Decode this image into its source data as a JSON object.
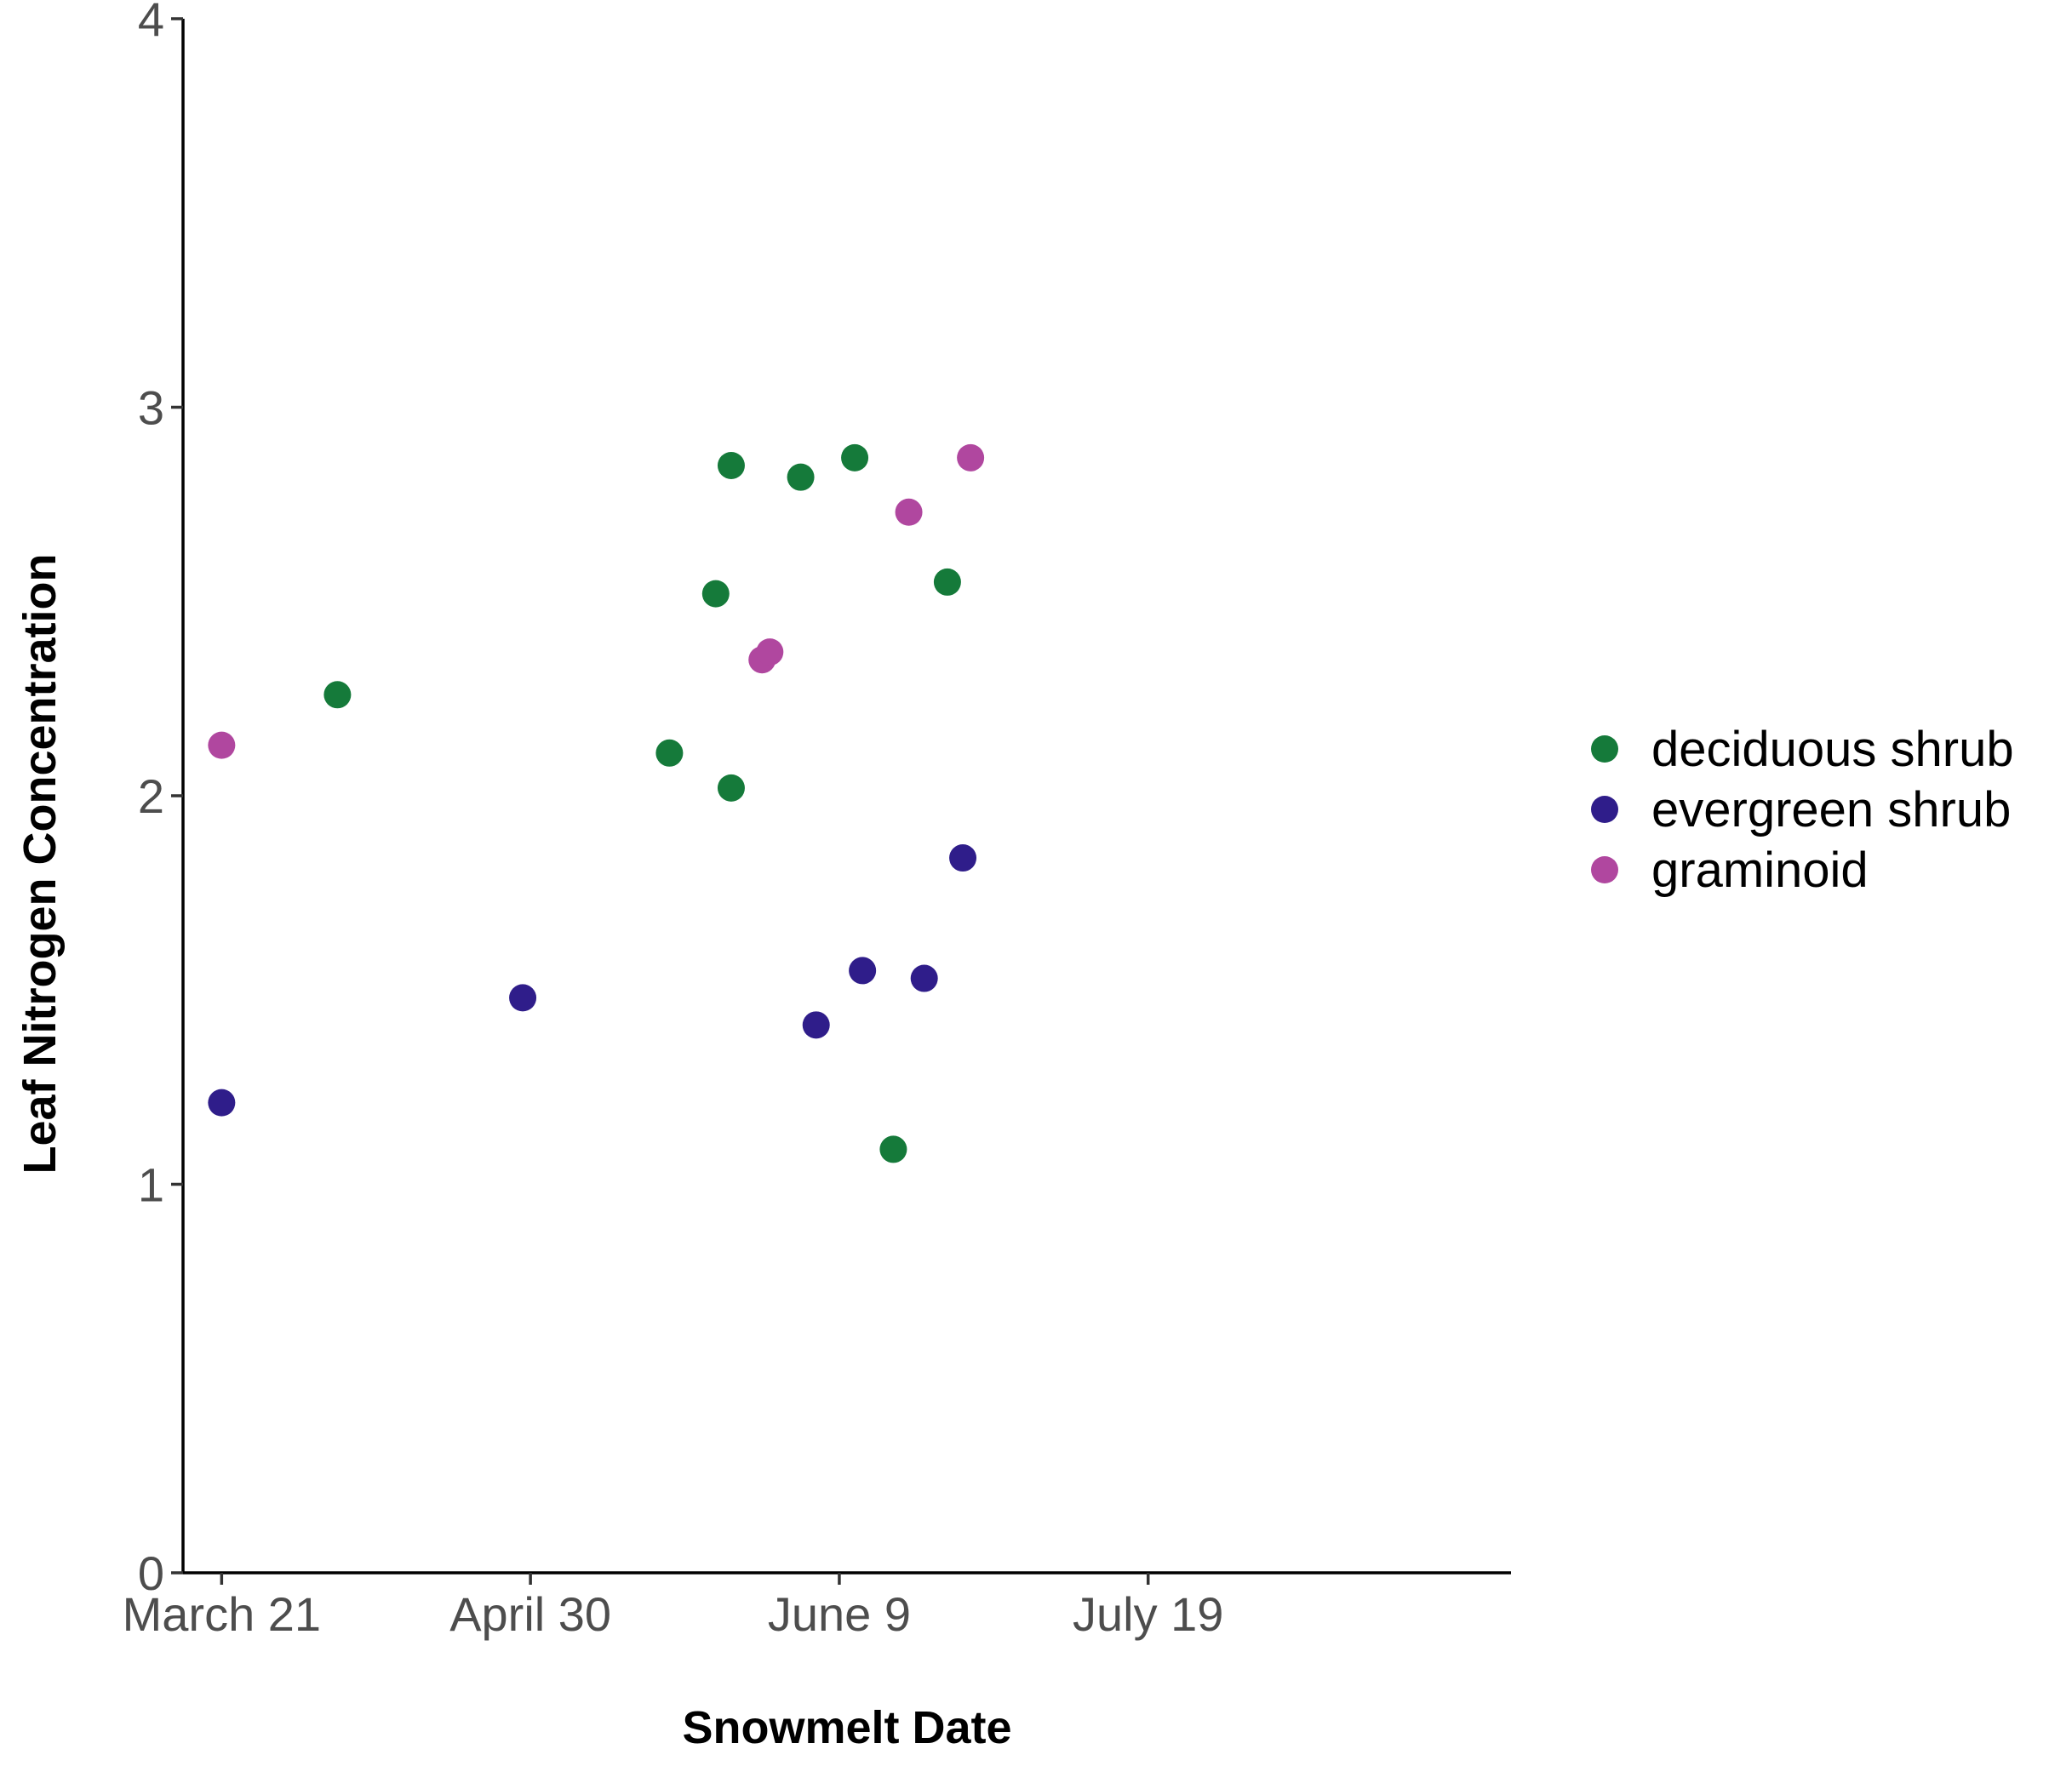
{
  "chart_data": {
    "type": "scatter",
    "title": "",
    "xlabel": "Snowmelt Date",
    "ylabel": "Leaf Nitrogen Concentration",
    "x_axis": {
      "scale": "date",
      "range": [
        "2014-03-16",
        "2014-09-04"
      ],
      "ticks": [
        {
          "value": "2014-03-21",
          "label": "March 21"
        },
        {
          "value": "2014-04-30",
          "label": "April 30"
        },
        {
          "value": "2014-06-09",
          "label": "June 9"
        },
        {
          "value": "2014-07-19",
          "label": "July 19"
        }
      ]
    },
    "y_axis": {
      "range": [
        0,
        4
      ],
      "ticks": [
        {
          "value": 0,
          "label": "0"
        },
        {
          "value": 1,
          "label": "1"
        },
        {
          "value": 2,
          "label": "2"
        },
        {
          "value": 3,
          "label": "3"
        },
        {
          "value": 4,
          "label": "4"
        }
      ]
    },
    "grid": false,
    "legend": {
      "position": "right"
    },
    "series": [
      {
        "name": "deciduous shrub",
        "color": "#157a3a",
        "points": [
          {
            "x": "2014-04-05",
            "y": 2.26
          },
          {
            "x": "2014-05-24",
            "y": 2.52
          },
          {
            "x": "2014-05-26",
            "y": 2.85
          },
          {
            "x": "2014-05-26",
            "y": 2.02
          },
          {
            "x": "2014-05-18",
            "y": 2.11
          },
          {
            "x": "2014-06-04",
            "y": 2.82
          },
          {
            "x": "2014-06-11",
            "y": 2.87
          },
          {
            "x": "2014-06-16",
            "y": 1.09
          },
          {
            "x": "2014-06-23",
            "y": 2.55
          }
        ]
      },
      {
        "name": "evergreen shrub",
        "color": "#2f1d8a",
        "points": [
          {
            "x": "2014-03-21",
            "y": 1.21
          },
          {
            "x": "2014-04-29",
            "y": 1.48
          },
          {
            "x": "2014-06-06",
            "y": 1.41
          },
          {
            "x": "2014-06-12",
            "y": 1.55
          },
          {
            "x": "2014-06-20",
            "y": 1.53
          },
          {
            "x": "2014-06-25",
            "y": 1.84
          }
        ]
      },
      {
        "name": "graminoid",
        "color": "#b0479f",
        "points": [
          {
            "x": "2014-03-21",
            "y": 2.13
          },
          {
            "x": "2014-05-30",
            "y": 2.35
          },
          {
            "x": "2014-05-31",
            "y": 2.37
          },
          {
            "x": "2014-06-18",
            "y": 2.73
          },
          {
            "x": "2014-06-26",
            "y": 2.87
          }
        ]
      }
    ]
  }
}
